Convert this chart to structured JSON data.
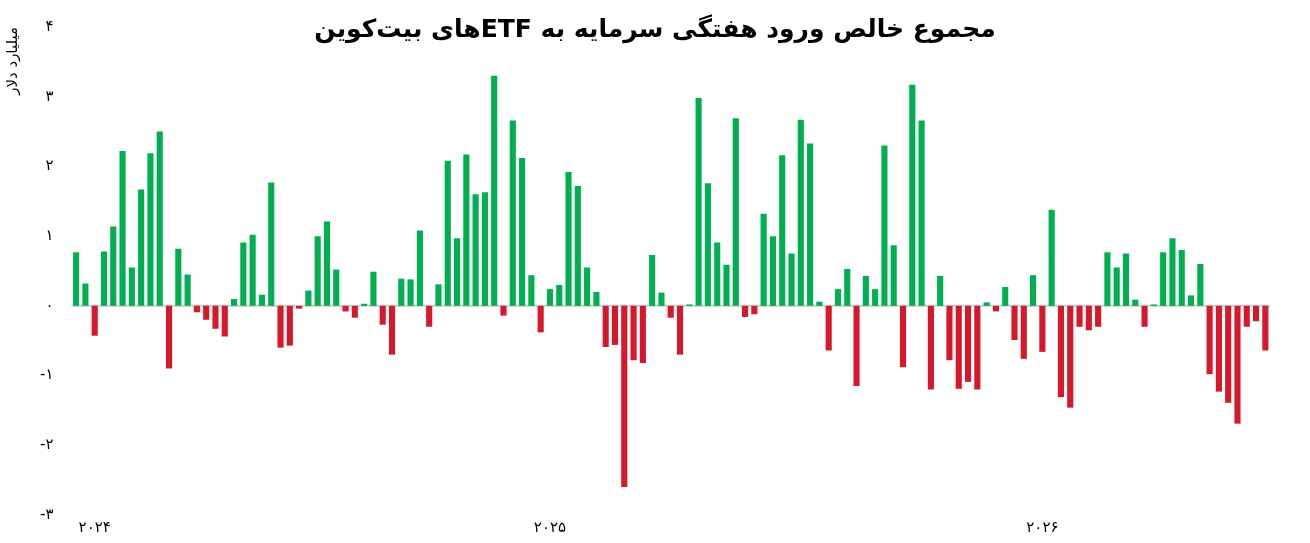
{
  "chart_data": {
    "type": "bar",
    "title": "مجموع خالص ورود هفتگی سرمایه به ETFهای بیت‌کوین",
    "ylabel": "میلیارد دلار",
    "categories": [
      null,
      null,
      "۲۰۲۴",
      null,
      null,
      null,
      null,
      null,
      null,
      null,
      null,
      null,
      null,
      null,
      null,
      null,
      null,
      null,
      null,
      null,
      null,
      null,
      null,
      null,
      null,
      null,
      null,
      null,
      null,
      null,
      null,
      null,
      null,
      null,
      null,
      null,
      null,
      null,
      null,
      null,
      null,
      null,
      null,
      null,
      null,
      null,
      null,
      null,
      null,
      null,
      null,
      "۲۰۲۵",
      null,
      null,
      null,
      null,
      null,
      null,
      null,
      null,
      null,
      null,
      null,
      null,
      null,
      null,
      null,
      null,
      null,
      null,
      null,
      null,
      null,
      null,
      null,
      null,
      null,
      null,
      null,
      null,
      null,
      null,
      null,
      null,
      null,
      null,
      null,
      null,
      null,
      null,
      null,
      null,
      null,
      null,
      null,
      null,
      null,
      null,
      null,
      null,
      null,
      null,
      null,
      null,
      "۲۰۲۶",
      null,
      null,
      null,
      null,
      null,
      null,
      null,
      null,
      null,
      null,
      null,
      null,
      null,
      null,
      null,
      null,
      null,
      null,
      null,
      null,
      null,
      null,
      null,
      null
    ],
    "values": [
      0.77,
      0.32,
      -0.43,
      0.78,
      1.14,
      2.22,
      0.55,
      1.67,
      2.19,
      2.5,
      -0.9,
      0.82,
      0.45,
      -0.09,
      -0.2,
      -0.33,
      -0.44,
      0.1,
      0.91,
      1.02,
      0.16,
      1.77,
      -0.6,
      -0.57,
      -0.04,
      0.22,
      1.0,
      1.21,
      0.52,
      -0.08,
      -0.17,
      0.03,
      0.49,
      -0.27,
      -0.7,
      0.39,
      0.38,
      1.08,
      -0.3,
      0.31,
      2.08,
      0.97,
      2.17,
      1.6,
      1.63,
      3.3,
      -0.14,
      2.66,
      2.12,
      0.44,
      -0.38,
      0.24,
      0.3,
      1.92,
      1.72,
      0.55,
      0.2,
      -0.59,
      -0.56,
      -2.6,
      -0.78,
      -0.82,
      0.73,
      0.19,
      -0.17,
      -0.7,
      0.02,
      2.98,
      1.76,
      0.91,
      0.59,
      2.69,
      -0.16,
      -0.12,
      1.32,
      1.0,
      2.16,
      0.75,
      2.67,
      2.33,
      0.06,
      -0.64,
      0.24,
      0.53,
      -1.15,
      0.43,
      0.24,
      2.3,
      0.87,
      -0.88,
      3.17,
      2.66,
      -1.2,
      0.43,
      -0.78,
      -1.19,
      -1.09,
      -1.2,
      0.05,
      -0.08,
      0.27,
      -0.49,
      -0.76,
      0.44,
      -0.66,
      1.38,
      -1.31,
      -1.46,
      -0.3,
      -0.35,
      -0.3,
      0.77,
      0.55,
      0.75,
      0.09,
      -0.3,
      0.02,
      0.77,
      0.97,
      0.8,
      0.15,
      0.6,
      -0.98,
      -1.23,
      -1.39,
      -1.69,
      -0.3,
      -0.22,
      -0.64
    ],
    "colors": [
      "#00b050",
      "#00b050",
      "#d7182a",
      "#00b050",
      "#00b050",
      "#00b050",
      "#00b050",
      "#00b050",
      "#00b050",
      "#00b050",
      "#d7182a",
      "#00b050",
      "#00b050",
      "#d7182a",
      "#d7182a",
      "#d7182a",
      "#d7182a",
      "#00b050",
      "#00b050",
      "#00b050",
      "#00b050",
      "#00b050",
      "#d7182a",
      "#d7182a",
      "#d7182a",
      "#00b050",
      "#00b050",
      "#00b050",
      "#00b050",
      "#d7182a",
      "#d7182a",
      "#00b050",
      "#00b050",
      "#d7182a",
      "#d7182a",
      "#00b050",
      "#00b050",
      "#00b050",
      "#d7182a",
      "#00b050",
      "#00b050",
      "#00b050",
      "#00b050",
      "#00b050",
      "#00b050",
      "#00b050",
      "#d7182a",
      "#00b050",
      "#00b050",
      "#00b050",
      "#d7182a",
      "#00b050",
      "#00b050",
      "#00b050",
      "#00b050",
      "#00b050",
      "#00b050",
      "#d7182a",
      "#d7182a",
      "#d7182a",
      "#d7182a",
      "#d7182a",
      "#00b050",
      "#00b050",
      "#d7182a",
      "#d7182a",
      "#00b050",
      "#00b050",
      "#00b050",
      "#00b050",
      "#00b050",
      "#00b050",
      "#d7182a",
      "#d7182a",
      "#00b050",
      "#00b050",
      "#00b050",
      "#00b050",
      "#00b050",
      "#00b050",
      "#00b050",
      "#d7182a",
      "#00b050",
      "#00b050",
      "#d7182a",
      "#00b050",
      "#00b050",
      "#00b050",
      "#00b050",
      "#d7182a",
      "#00b050",
      "#00b050",
      "#d7182a",
      "#00b050",
      "#d7182a",
      "#d7182a",
      "#d7182a",
      "#d7182a",
      "#00b050",
      "#d7182a",
      "#00b050",
      "#d7182a",
      "#d7182a",
      "#00b050",
      "#d7182a",
      "#00b050",
      "#d7182a",
      "#d7182a",
      "#d7182a",
      "#d7182a",
      "#d7182a",
      "#00b050",
      "#00b050",
      "#00b050",
      "#00b050",
      "#d7182a",
      "#00b050",
      "#00b050",
      "#00b050",
      "#00b050",
      "#00b050",
      "#00b050",
      "#d7182a",
      "#d7182a",
      "#d7182a",
      "#d7182a",
      "#d7182a",
      "#d7182a",
      "#d7182a"
    ],
    "ylim": [
      -3,
      4
    ],
    "yticks": [
      {
        "value": -3,
        "label": "-۳"
      },
      {
        "value": -2,
        "label": "-۲"
      },
      {
        "value": -1,
        "label": "-۱"
      },
      {
        "value": 0,
        "label": "۰"
      },
      {
        "value": 1,
        "label": "۱"
      },
      {
        "value": 2,
        "label": "۲"
      },
      {
        "value": 3,
        "label": "۳"
      },
      {
        "value": 4,
        "label": "۴"
      }
    ],
    "ref_lines": [
      {
        "axis": "y",
        "value": 0,
        "color": "#cccccc"
      }
    ],
    "grid": false,
    "legend": false
  }
}
